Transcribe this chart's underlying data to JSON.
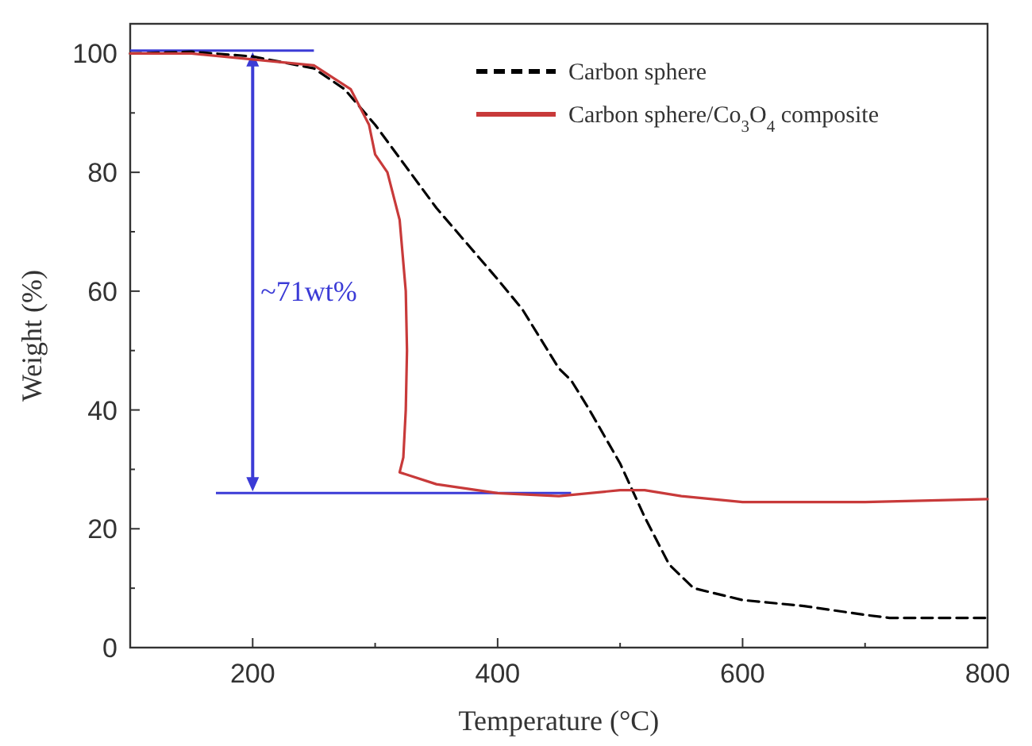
{
  "chart_data": {
    "type": "line",
    "xlabel": "Temperature (°C)",
    "ylabel": "Weight (%)",
    "xlim": [
      100,
      800
    ],
    "ylim": [
      0,
      105
    ],
    "xticks": [
      {
        "value": 100,
        "label": null
      },
      200,
      {
        "value": 300,
        "label": null
      },
      400,
      {
        "value": 500,
        "label": null
      },
      600,
      {
        "value": 700,
        "label": null
      },
      800
    ],
    "yticks": [
      0,
      {
        "value": 10,
        "label": null
      },
      20,
      {
        "value": 30,
        "label": null
      },
      40,
      {
        "value": 50,
        "label": null
      },
      60,
      {
        "value": 70,
        "label": null
      },
      80,
      {
        "value": 90,
        "label": null
      },
      100
    ],
    "grid": false,
    "legend": "top right",
    "marker": "none",
    "annotations": [
      "~71wt%"
    ],
    "ref_lines": [
      {
        "axis": "y",
        "value": 100.5,
        "color": "#3b3bd6"
      },
      {
        "axis": "y",
        "value": 26,
        "color": "#3b3bd6"
      }
    ],
    "series": [
      {
        "name": "Carbon sphere",
        "color": "#000000",
        "line_style": "dashed",
        "x": [
          100,
          150,
          200,
          250,
          275,
          300,
          350,
          400,
          420,
          450,
          460,
          475,
          500,
          520,
          540,
          560,
          600,
          650,
          700,
          720,
          800
        ],
        "values": [
          100,
          100.3,
          99.5,
          97.5,
          94,
          88,
          74,
          62,
          57,
          47,
          45,
          40,
          31,
          22,
          14,
          10,
          8,
          7,
          5.5,
          5,
          5
        ]
      },
      {
        "name": "Carbon sphere/Co$_{3}$O$_{4}$ composite",
        "color": "#c83a3a",
        "line_style": "solid",
        "x": [
          100,
          150,
          200,
          250,
          280,
          295,
          300,
          310,
          320,
          325,
          326,
          325,
          323,
          320,
          350,
          400,
          450,
          500,
          520,
          550,
          600,
          700,
          800
        ],
        "values": [
          100,
          100,
          99,
          98,
          94,
          88,
          83,
          80,
          72,
          60,
          50,
          40,
          32,
          29.5,
          27.5,
          26,
          25.5,
          26.5,
          26.5,
          25.5,
          24.5,
          24.5,
          25
        ]
      }
    ]
  }
}
